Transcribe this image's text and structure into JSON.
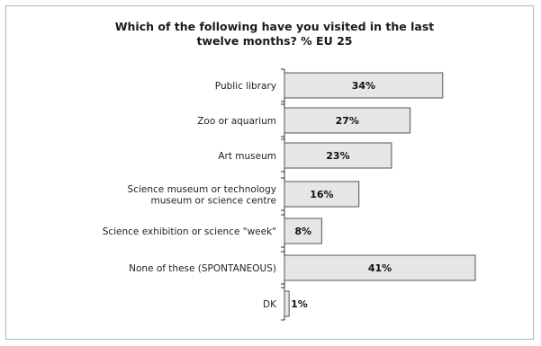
{
  "chart_data": {
    "type": "bar",
    "orientation": "horizontal",
    "title": "Which of the following have you visited in the last twelve months? % EU 25",
    "categories": [
      [
        "Public library"
      ],
      [
        "Zoo or aquarium"
      ],
      [
        "Art museum"
      ],
      [
        "Science museum or technology",
        "museum or science centre"
      ],
      [
        "Science exhibition or science \"week\""
      ],
      [
        "None of these (SPONTANEOUS)"
      ],
      [
        "DK"
      ]
    ],
    "values": [
      34,
      27,
      23,
      16,
      8,
      41,
      1
    ],
    "value_labels": [
      "34%",
      "27%",
      "23%",
      "16%",
      "8%",
      "41%",
      "1%"
    ],
    "xlim": [
      0,
      41
    ],
    "colors": {
      "bar_fill": "#e6e6e6",
      "bar_stroke": "#555555",
      "axis": "#333333"
    }
  }
}
